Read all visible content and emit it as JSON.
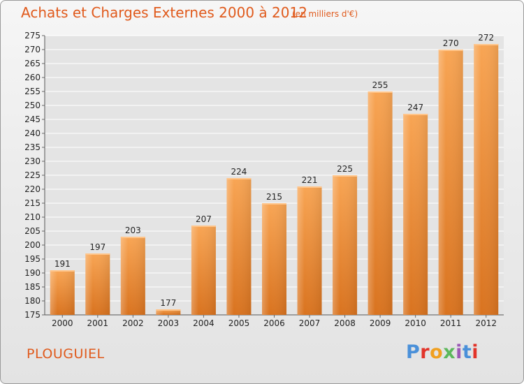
{
  "header": {
    "title": "Achats et Charges Externes 2000 à 2012",
    "subtitle": "(en milliers d'€)"
  },
  "footer": {
    "commune": "PLOUGUIEL",
    "logo_text": "Proxiti"
  },
  "colors": {
    "title": "#e05a1c",
    "bar_light": "#f8a554",
    "bar_dark": "#d9731f",
    "grid": "#ffffff",
    "logo": [
      "#4a90d9",
      "#e2342a",
      "#f0a020",
      "#5cb85c",
      "#9b59b6",
      "#4a90d9",
      "#e2342a"
    ]
  },
  "chart_data": {
    "type": "bar",
    "title": "Achats et Charges Externes 2000 à 2012",
    "subtitle": "(en milliers d'€)",
    "categories": [
      "2000",
      "2001",
      "2002",
      "2003",
      "2004",
      "2005",
      "2006",
      "2007",
      "2008",
      "2009",
      "2010",
      "2011",
      "2012"
    ],
    "values": [
      191,
      197,
      203,
      177,
      207,
      224,
      215,
      221,
      225,
      255,
      247,
      270,
      272
    ],
    "ylim": [
      175,
      275
    ],
    "ytick_step": 5,
    "grid": true,
    "data_labels": true
  }
}
